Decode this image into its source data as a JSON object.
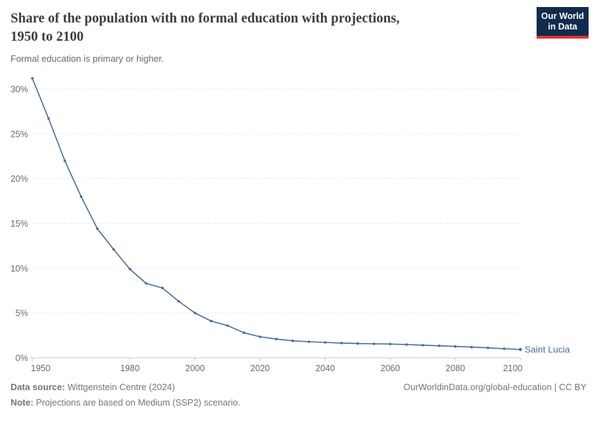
{
  "header": {
    "title_line1": "Share of the population with no formal education with projections,",
    "title_line2": "1950 to 2100",
    "subtitle": "Formal education is primary or higher.",
    "logo": {
      "line1": "Our World",
      "line2": "in Data",
      "bg_color": "#112b4d",
      "bar_color": "#e0362c"
    }
  },
  "chart_data": {
    "type": "line",
    "title": "Share of the population with no formal education with projections, 1950 to 2100",
    "xlabel": "",
    "ylabel": "",
    "xlim": [
      1950,
      2100
    ],
    "ylim": [
      0,
      31.5
    ],
    "x_ticks": [
      1950,
      1980,
      2000,
      2020,
      2040,
      2060,
      2080,
      2100
    ],
    "y_ticks": [
      0,
      5,
      10,
      15,
      20,
      25,
      30
    ],
    "y_tick_suffix": "%",
    "grid": "horizontal-dashed",
    "legend_position": "end-of-line-label",
    "grid_color": "#e3e3e3",
    "axis_color": "#c9c9c9",
    "tick_label_color": "#6b6b6b",
    "series": [
      {
        "name": "Saint Lucia",
        "color": "#4c6a9c",
        "points": [
          [
            1950,
            31.2
          ],
          [
            1955,
            26.7
          ],
          [
            1960,
            22.0
          ],
          [
            1965,
            18.0
          ],
          [
            1970,
            14.4
          ],
          [
            1975,
            12.1
          ],
          [
            1980,
            9.9
          ],
          [
            1985,
            8.3
          ],
          [
            1990,
            7.8
          ],
          [
            1995,
            6.3
          ],
          [
            2000,
            5.0
          ],
          [
            2005,
            4.1
          ],
          [
            2010,
            3.6
          ],
          [
            2015,
            2.8
          ],
          [
            2020,
            2.35
          ],
          [
            2025,
            2.1
          ],
          [
            2030,
            1.9
          ],
          [
            2035,
            1.8
          ],
          [
            2040,
            1.72
          ],
          [
            2045,
            1.65
          ],
          [
            2050,
            1.6
          ],
          [
            2055,
            1.57
          ],
          [
            2060,
            1.54
          ],
          [
            2065,
            1.49
          ],
          [
            2070,
            1.42
          ],
          [
            2075,
            1.35
          ],
          [
            2080,
            1.28
          ],
          [
            2085,
            1.2
          ],
          [
            2090,
            1.12
          ],
          [
            2095,
            1.02
          ],
          [
            2100,
            0.93
          ]
        ]
      }
    ]
  },
  "footer": {
    "source_label": "Data source:",
    "source_text": " Wittgenstein Centre (2024)",
    "note_label": "Note:",
    "note_text": " Projections are based on Medium (SSP2) scenario.",
    "attribution": "OurWorldinData.org/global-education | CC BY"
  }
}
